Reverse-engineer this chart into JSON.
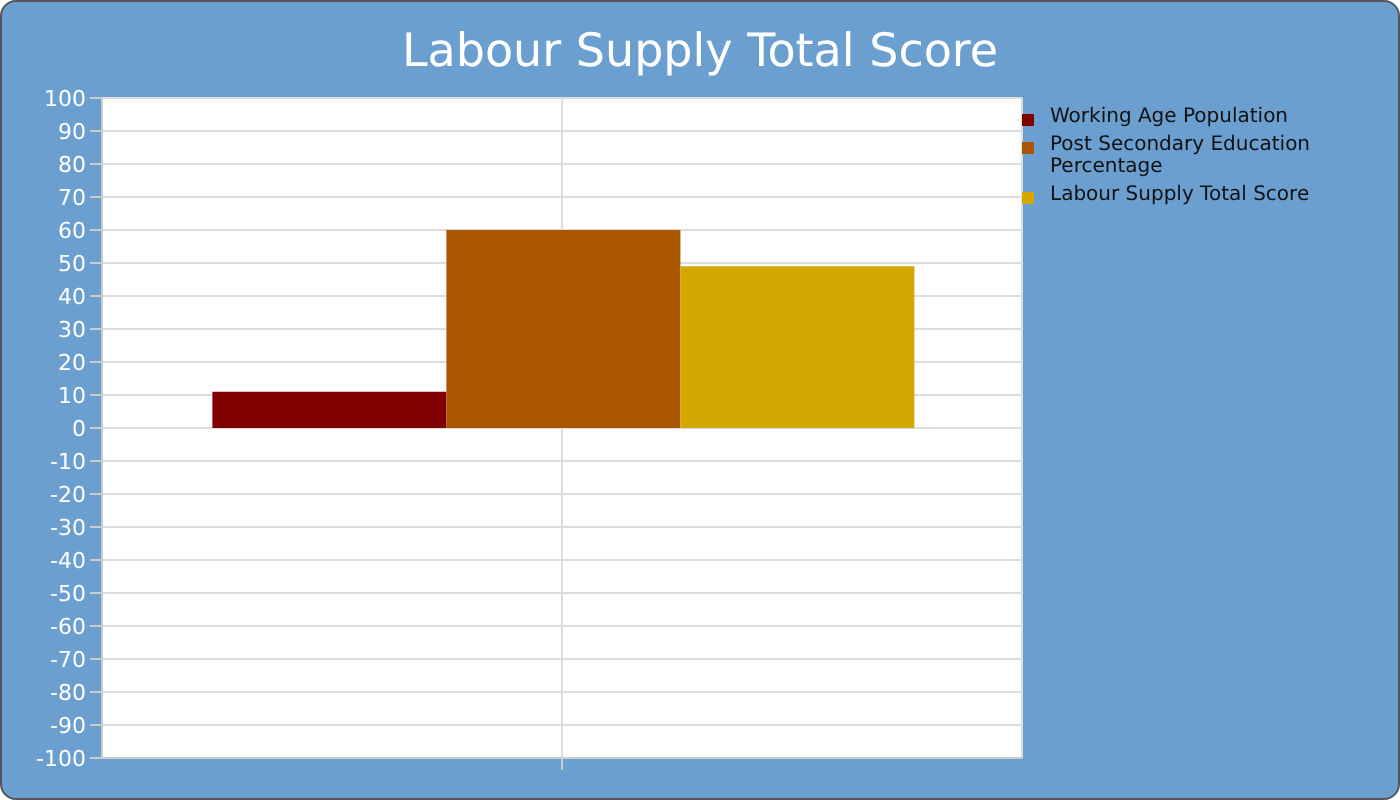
{
  "chart_data": {
    "type": "bar",
    "title": "Labour Supply Total Score",
    "categories": [
      null
    ],
    "series": [
      {
        "name": "Working Age Population",
        "color": "#800000",
        "values": [
          11
        ]
      },
      {
        "name": "Post Secondary Education Percentage",
        "color": "#aa5500",
        "values": [
          60
        ]
      },
      {
        "name": "Labour Supply Total Score",
        "color": "#d4a800",
        "values": [
          49
        ]
      }
    ],
    "ylim": [
      -100,
      100
    ],
    "yticks": [
      -100,
      -90,
      -80,
      -70,
      -60,
      -50,
      -40,
      -30,
      -20,
      -10,
      0,
      10,
      20,
      30,
      40,
      50,
      60,
      70,
      80,
      90,
      100
    ],
    "grid": true,
    "legend": "top right"
  }
}
